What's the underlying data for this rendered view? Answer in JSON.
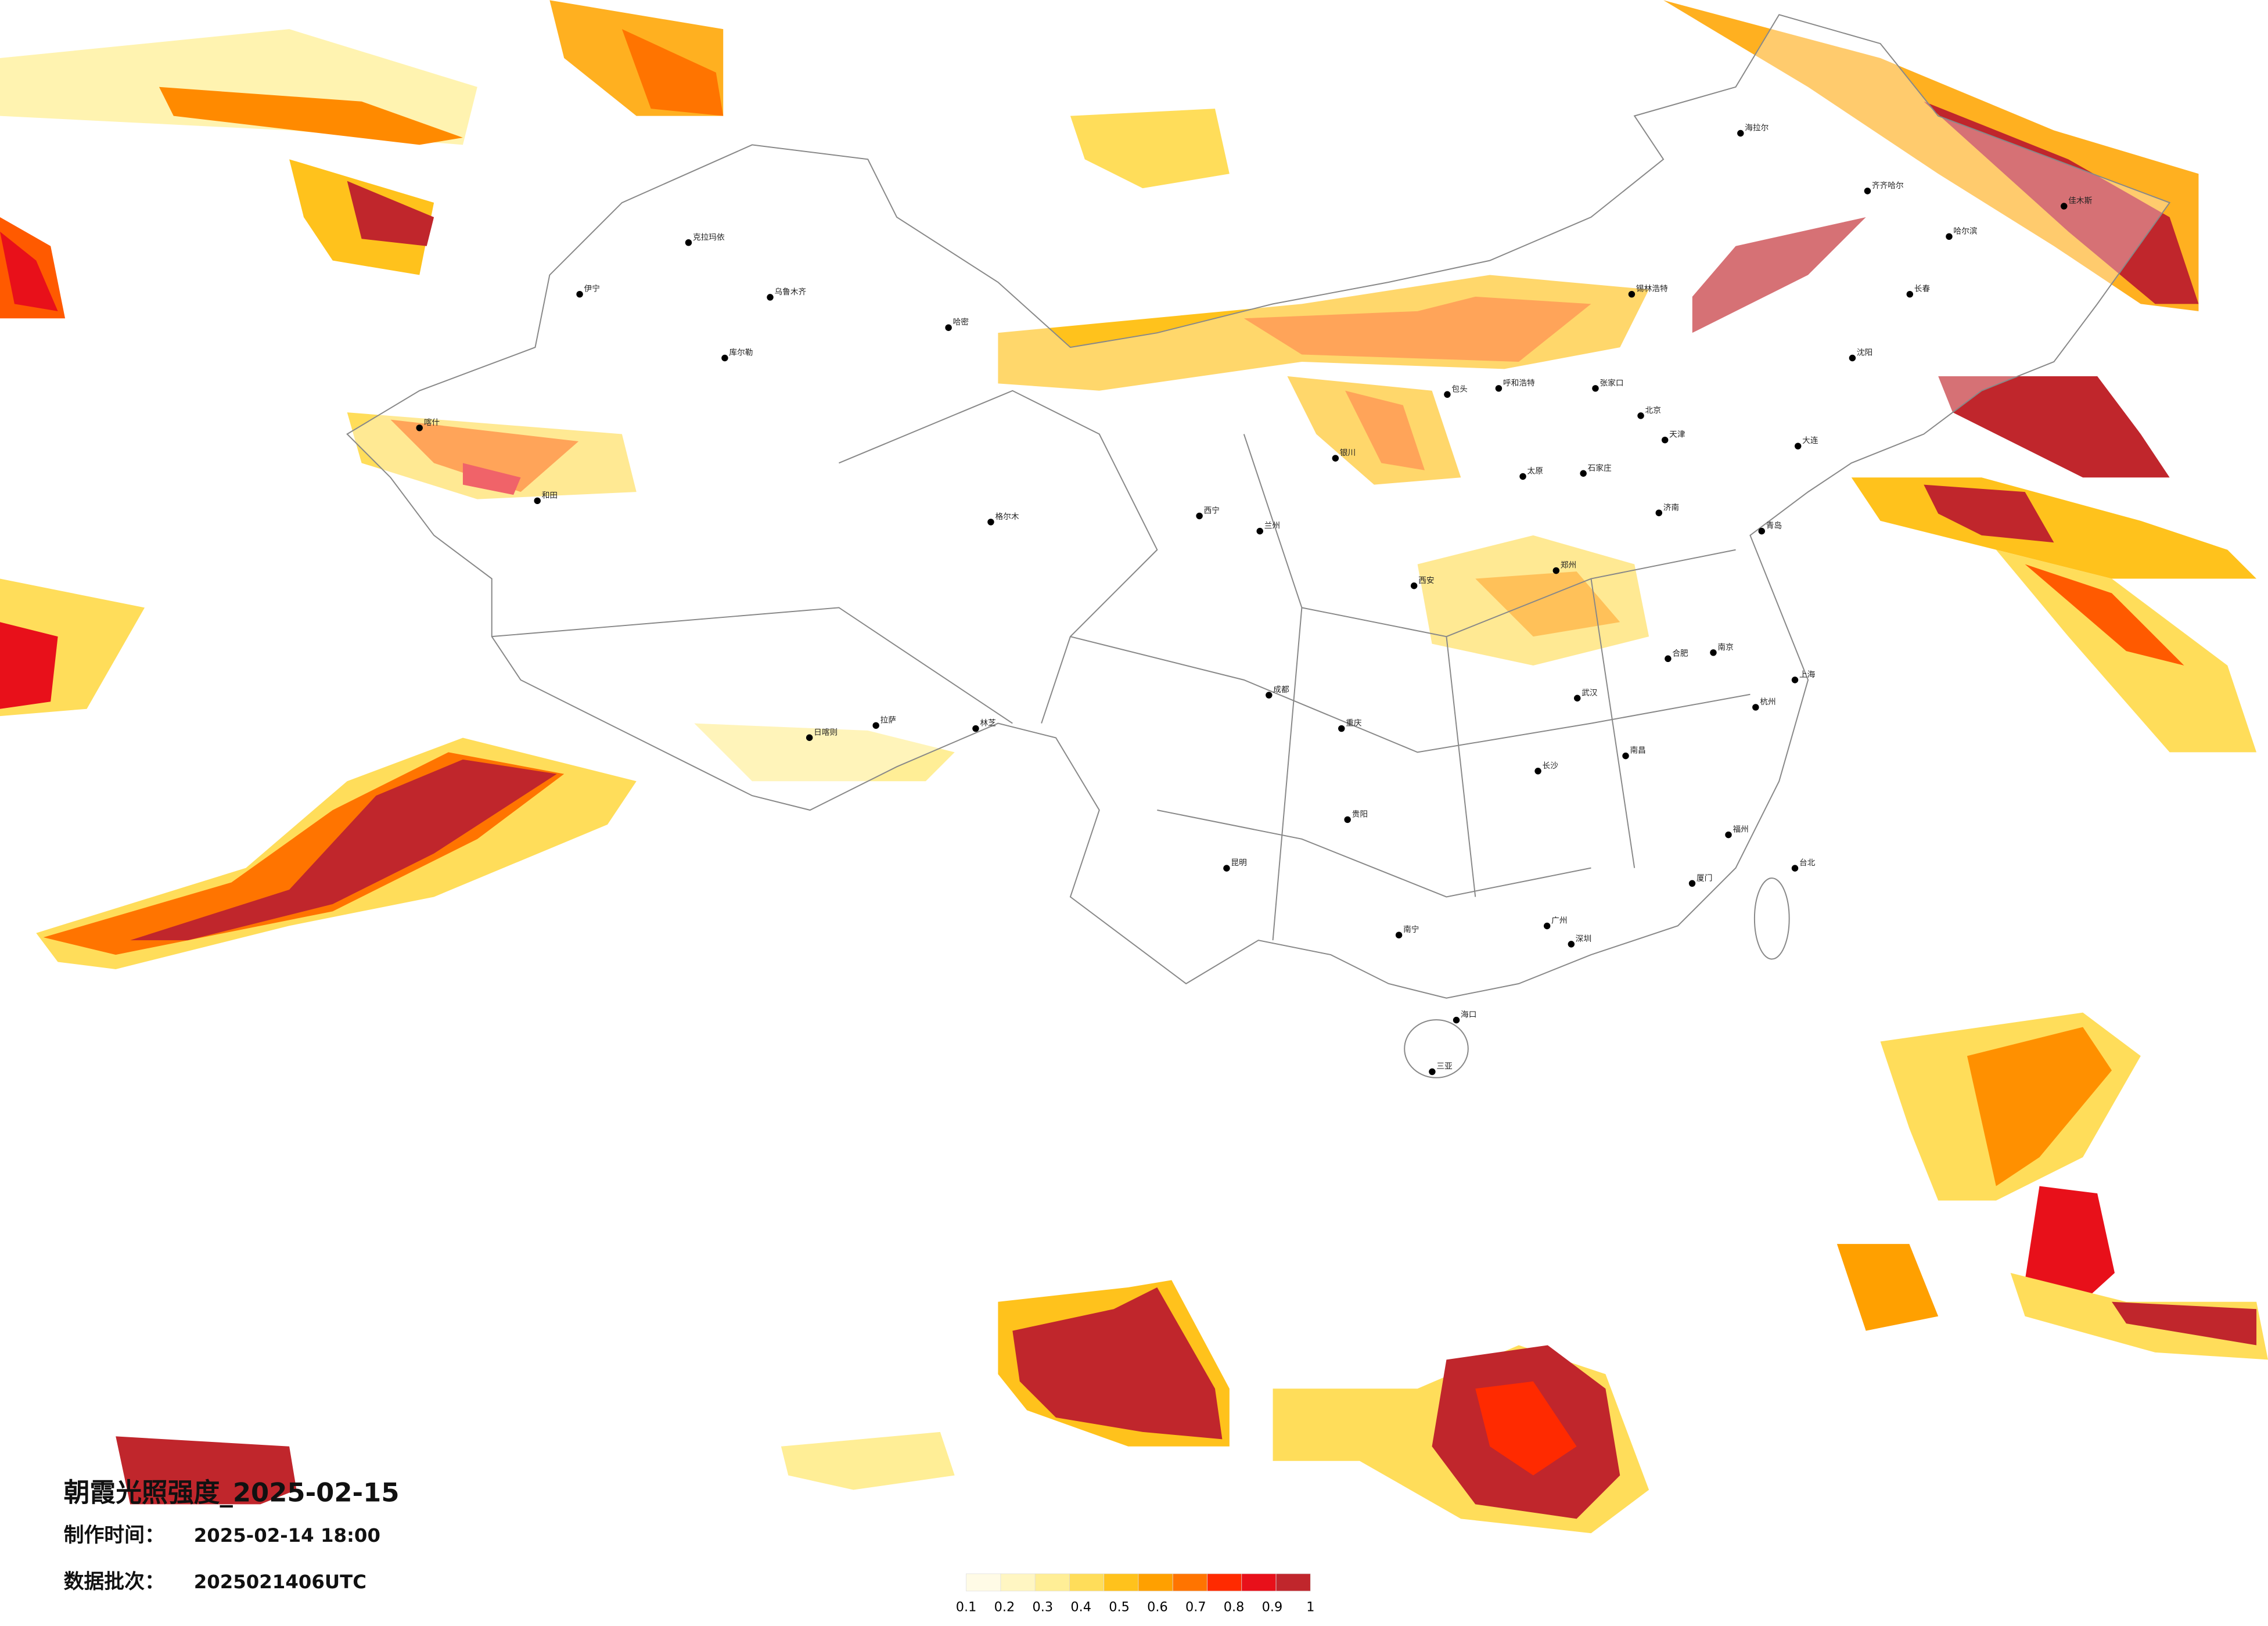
{
  "title": "朝霞光照强度_2025-02-15",
  "production_time": {
    "label": "制作时间：",
    "value": "2025-02-14 18:00"
  },
  "data_batch": {
    "label": "数据批次：",
    "value": "2025021406UTC"
  },
  "colorbar": {
    "colors": [
      "#fffbe6",
      "#fff6c2",
      "#ffee96",
      "#ffdd5a",
      "#ffc21c",
      "#ffa000",
      "#ff7400",
      "#ff2a00",
      "#e8101a",
      "#c0262c"
    ],
    "ticks": [
      0.1,
      0.2,
      0.3,
      0.4,
      0.5,
      0.6,
      0.7,
      0.8,
      0.9,
      1
    ]
  },
  "cities": [
    {
      "name": "北京",
      "lon": 116.4,
      "lat": 39.9
    },
    {
      "name": "上海",
      "lon": 121.5,
      "lat": 31.2
    },
    {
      "name": "广州",
      "lon": 113.3,
      "lat": 23.1
    },
    {
      "name": "深圳",
      "lon": 114.1,
      "lat": 22.5
    },
    {
      "name": "成都",
      "lon": 104.1,
      "lat": 30.7
    },
    {
      "name": "重庆",
      "lon": 106.5,
      "lat": 29.6
    },
    {
      "name": "武汉",
      "lon": 114.3,
      "lat": 30.6
    },
    {
      "name": "西安",
      "lon": 108.9,
      "lat": 34.3
    },
    {
      "name": "郑州",
      "lon": 113.6,
      "lat": 34.8
    },
    {
      "name": "长沙",
      "lon": 113.0,
      "lat": 28.2
    },
    {
      "name": "南京",
      "lon": 118.8,
      "lat": 32.1
    },
    {
      "name": "杭州",
      "lon": 120.2,
      "lat": 30.3
    },
    {
      "name": "合肥",
      "lon": 117.3,
      "lat": 31.9
    },
    {
      "name": "济南",
      "lon": 117.0,
      "lat": 36.7
    },
    {
      "name": "石家庄",
      "lon": 114.5,
      "lat": 38.0
    },
    {
      "name": "太原",
      "lon": 112.5,
      "lat": 37.9
    },
    {
      "name": "呼和浩特",
      "lon": 111.7,
      "lat": 40.8
    },
    {
      "name": "沈阳",
      "lon": 123.4,
      "lat": 41.8
    },
    {
      "name": "长春",
      "lon": 125.3,
      "lat": 43.9
    },
    {
      "name": "哈尔滨",
      "lon": 126.6,
      "lat": 45.8
    },
    {
      "name": "乌鲁木齐",
      "lon": 87.6,
      "lat": 43.8
    },
    {
      "name": "拉萨",
      "lon": 91.1,
      "lat": 29.7
    },
    {
      "name": "西宁",
      "lon": 101.8,
      "lat": 36.6
    },
    {
      "name": "兰州",
      "lon": 103.8,
      "lat": 36.1
    },
    {
      "name": "银川",
      "lon": 106.3,
      "lat": 38.5
    },
    {
      "name": "昆明",
      "lon": 102.7,
      "lat": 25.0
    },
    {
      "name": "贵阳",
      "lon": 106.7,
      "lat": 26.6
    },
    {
      "name": "南宁",
      "lon": 108.4,
      "lat": 22.8
    },
    {
      "name": "海口",
      "lon": 110.3,
      "lat": 20.0
    },
    {
      "name": "福州",
      "lon": 119.3,
      "lat": 26.1
    },
    {
      "name": "南昌",
      "lon": 115.9,
      "lat": 28.7
    },
    {
      "name": "台北",
      "lon": 121.5,
      "lat": 25.0
    },
    {
      "name": "天津",
      "lon": 117.2,
      "lat": 39.1
    },
    {
      "name": "大连",
      "lon": 121.6,
      "lat": 38.9
    },
    {
      "name": "青岛",
      "lon": 120.4,
      "lat": 36.1
    },
    {
      "name": "喀什",
      "lon": 76.0,
      "lat": 39.5
    },
    {
      "name": "和田",
      "lon": 79.9,
      "lat": 37.1
    },
    {
      "name": "克拉玛依",
      "lon": 84.9,
      "lat": 45.6
    },
    {
      "name": "哈密",
      "lon": 93.5,
      "lat": 42.8
    },
    {
      "name": "伊宁",
      "lon": 81.3,
      "lat": 43.9
    },
    {
      "name": "库尔勒",
      "lon": 86.1,
      "lat": 41.8
    },
    {
      "name": "格尔木",
      "lon": 94.9,
      "lat": 36.4
    },
    {
      "name": "日喀则",
      "lon": 88.9,
      "lat": 29.3
    },
    {
      "name": "林芝",
      "lon": 94.4,
      "lat": 29.6
    },
    {
      "name": "齐齐哈尔",
      "lon": 123.9,
      "lat": 47.3
    },
    {
      "name": "海拉尔",
      "lon": 119.7,
      "lat": 49.2
    },
    {
      "name": "三亚",
      "lon": 109.5,
      "lat": 18.3
    },
    {
      "name": "厦门",
      "lon": 118.1,
      "lat": 24.5
    },
    {
      "name": "包头",
      "lon": 110.0,
      "lat": 40.6
    },
    {
      "name": "锡林浩特",
      "lon": 116.1,
      "lat": 43.9
    },
    {
      "name": "张家口",
      "lon": 114.9,
      "lat": 40.8
    },
    {
      "name": "佳木斯",
      "lon": 130.4,
      "lat": 46.8
    }
  ]
}
